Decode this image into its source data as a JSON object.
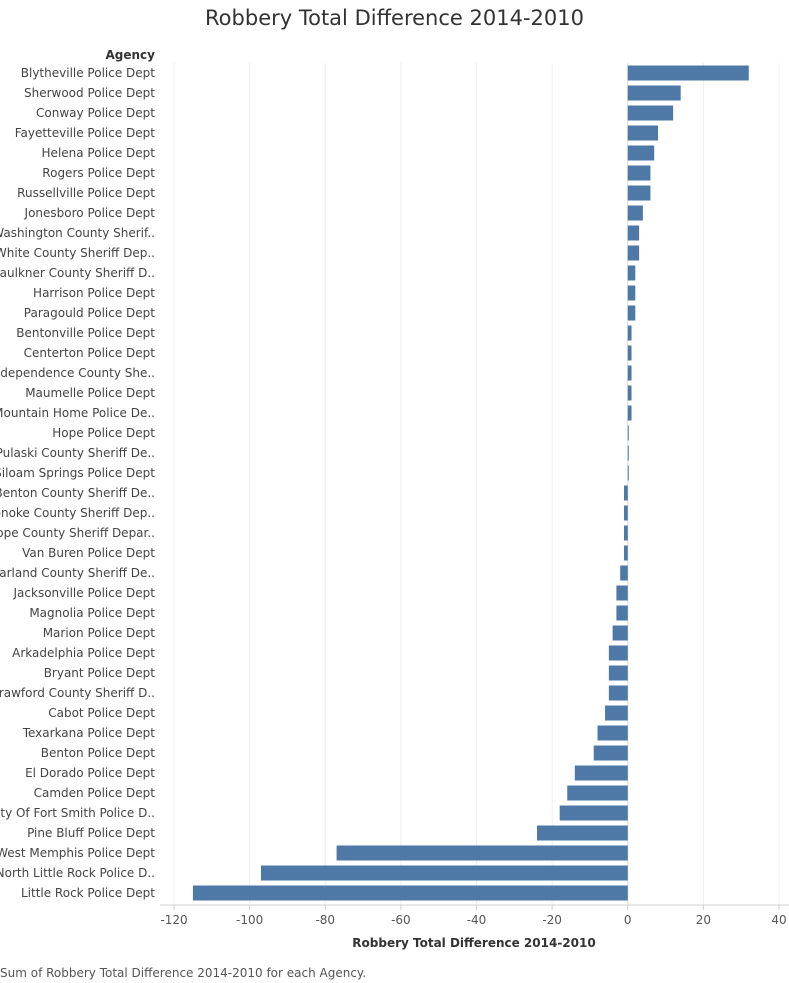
{
  "chart_data": {
    "type": "bar",
    "orientation": "horizontal",
    "title": "Robbery Total Difference 2014-2010",
    "row_header": "Agency",
    "xlabel": "Robbery Total Difference 2014-2010",
    "ylabel": "",
    "xlim": [
      -120,
      40
    ],
    "xticks": [
      -120,
      -100,
      -80,
      -60,
      -40,
      -20,
      0,
      20,
      40
    ],
    "grid": true,
    "bar_color": "#4e79a7",
    "categories": [
      "Blytheville Police Dept",
      "Sherwood Police Dept",
      "Conway Police Dept",
      "Fayetteville Police Dept",
      "Helena Police Dept",
      "Rogers Police Dept",
      "Russellville Police Dept",
      "Jonesboro Police Dept",
      "Washington County Sherif..",
      "White County Sheriff Dep..",
      "Faulkner County Sheriff D..",
      "Harrison Police Dept",
      "Paragould Police Dept",
      "Bentonville Police Dept",
      "Centerton Police Dept",
      "Independence County She..",
      "Maumelle Police Dept",
      "Mountain Home Police De..",
      "Hope Police Dept",
      "Pulaski County Sheriff De..",
      "Siloam Springs Police Dept",
      "Benton County Sheriff De..",
      "Lonoke County Sheriff Dep..",
      "Pope County Sheriff Depar..",
      "Van Buren Police Dept",
      "Garland County Sheriff De..",
      "Jacksonville Police Dept",
      "Magnolia Police Dept",
      "Marion Police Dept",
      "Arkadelphia Police Dept",
      "Bryant Police Dept",
      "Crawford County Sheriff D..",
      "Cabot Police Dept",
      "Texarkana Police Dept",
      "Benton Police Dept",
      "El Dorado Police Dept",
      "Camden Police Dept",
      "City Of Fort Smith Police D..",
      "Pine Bluff Police Dept",
      "West Memphis Police Dept",
      "North Little Rock Police D..",
      "Little Rock Police Dept"
    ],
    "values": [
      32,
      14,
      12,
      8,
      7,
      6,
      6,
      4,
      3,
      3,
      2,
      2,
      2,
      1,
      1,
      1,
      1,
      1,
      0,
      0,
      0,
      -1,
      -1,
      -1,
      -1,
      -2,
      -3,
      -3,
      -4,
      -5,
      -5,
      -5,
      -6,
      -8,
      -9,
      -14,
      -16,
      -18,
      -24,
      -77,
      -97,
      -115
    ]
  },
  "caption": "Sum of Robbery Total Difference 2014-2010 for each Agency."
}
